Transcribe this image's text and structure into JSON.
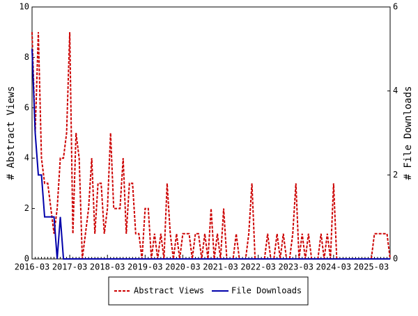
{
  "chart_data": {
    "type": "line",
    "categories": [
      "2016-03",
      null,
      null,
      null,
      null,
      null,
      null,
      null,
      null,
      null,
      null,
      null,
      "2017-03",
      null,
      null,
      null,
      null,
      null,
      null,
      null,
      null,
      null,
      null,
      null,
      "2018-03",
      null,
      null,
      null,
      null,
      null,
      null,
      null,
      null,
      null,
      null,
      null,
      "2019-03",
      null,
      null,
      null,
      null,
      null,
      null,
      null,
      null,
      null,
      null,
      null,
      "2020-03",
      null,
      null,
      null,
      null,
      null,
      null,
      null,
      null,
      null,
      null,
      null,
      "2021-03",
      null,
      null,
      null,
      null,
      null,
      null,
      null,
      null,
      null,
      null,
      null,
      "2022-03",
      null,
      null,
      null,
      null,
      null,
      null,
      null,
      null,
      null,
      null,
      null,
      "2023-03",
      null,
      null,
      null,
      null,
      null,
      null,
      null,
      null,
      null,
      null,
      null,
      "2024-03",
      null,
      null,
      null,
      null,
      null,
      null,
      null,
      null,
      null,
      null,
      null,
      "2025-03",
      null,
      null,
      null,
      null,
      null,
      null
    ],
    "series": [
      {
        "name": "Abstract Views",
        "color": "#cc0000",
        "dash": true,
        "values": [
          9,
          5,
          9,
          4,
          3,
          3,
          2,
          1,
          2,
          4,
          4,
          5,
          9,
          1,
          5,
          4,
          0,
          1,
          2,
          4,
          1,
          3,
          3,
          1,
          2,
          5,
          2,
          2,
          2,
          4,
          1,
          3,
          3,
          1,
          1,
          0,
          2,
          2,
          0,
          1,
          0,
          1,
          0,
          3,
          1,
          0,
          1,
          0,
          1,
          1,
          1,
          0,
          1,
          1,
          0,
          1,
          0,
          2,
          0,
          1,
          0,
          2,
          0,
          0,
          0,
          1,
          0,
          0,
          0,
          1,
          3,
          0,
          0,
          0,
          0,
          1,
          0,
          0,
          1,
          0,
          1,
          0,
          0,
          1,
          3,
          0,
          1,
          0,
          1,
          0,
          0,
          0,
          1,
          0,
          1,
          0,
          3,
          0,
          0,
          0,
          0,
          0,
          0,
          0,
          0,
          0,
          0,
          0,
          0,
          1,
          1,
          1,
          1,
          1,
          0
        ]
      },
      {
        "name": "File Downloads",
        "color": "#0000aa",
        "dash": false,
        "axis": "y2",
        "values": [
          5,
          3,
          2,
          2,
          1,
          1,
          1,
          1,
          0,
          1,
          0,
          0,
          0,
          0,
          0,
          0,
          0,
          0,
          0,
          0,
          0,
          0,
          0,
          0,
          0,
          0,
          0,
          0,
          0,
          0,
          0,
          0,
          0,
          0,
          0,
          0,
          0,
          0,
          0,
          0,
          0,
          0,
          0,
          0,
          0,
          0,
          0,
          0,
          0,
          0,
          0,
          0,
          0,
          0,
          0,
          0,
          0,
          0,
          0,
          0,
          0,
          0,
          0,
          0,
          0,
          0,
          0,
          0,
          0,
          0,
          0,
          0,
          0,
          0,
          0,
          0,
          0,
          0,
          0,
          0,
          0,
          0,
          0,
          0,
          0,
          0,
          0,
          0,
          0,
          0,
          0,
          0,
          0,
          0,
          0,
          0,
          0,
          0,
          0,
          0,
          0,
          0,
          0,
          0,
          0,
          0,
          0,
          0,
          0,
          0,
          0,
          0,
          0,
          0,
          0
        ]
      }
    ],
    "ylabel": "# Abstract Views",
    "y2label": "# File Downloads",
    "ylim": [
      0,
      10
    ],
    "yticks": [
      0,
      2,
      4,
      6,
      8,
      10
    ],
    "y2lim": [
      0,
      6
    ],
    "y2ticks": [
      0,
      2,
      4,
      6
    ],
    "legend": "bottom"
  }
}
